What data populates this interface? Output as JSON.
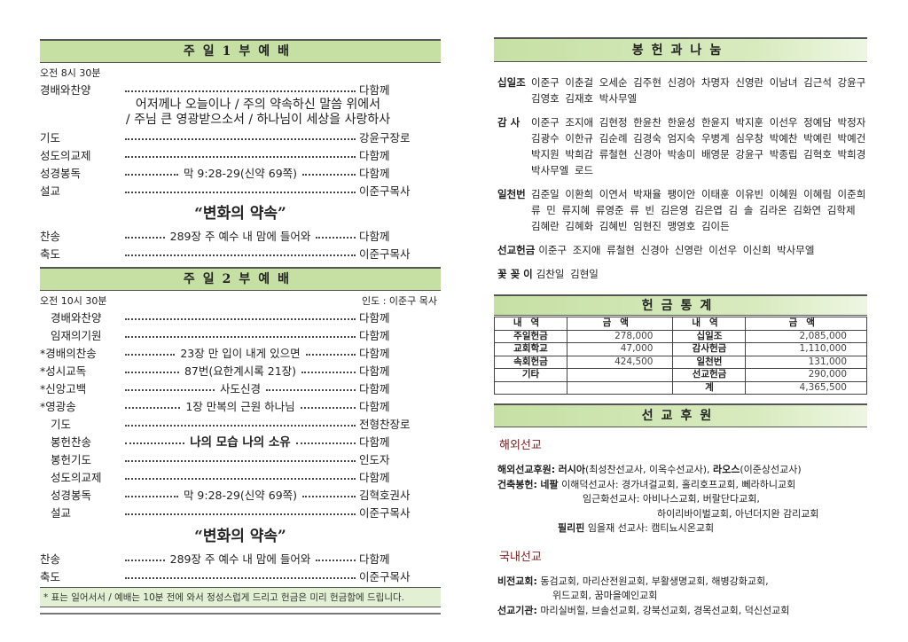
{
  "service1": {
    "header": "주일1부예배",
    "time": "오전 8시 30분",
    "rows_a": [
      {
        "label": "경배와찬양",
        "mid": "",
        "right": "다함께"
      }
    ],
    "hymns": [
      "어저께나 오늘이나 / 주의 약속하신 말씀 위에서",
      "/ 주님 큰 영광받으소서 / 하나님이 세상을 사랑하사"
    ],
    "rows_b": [
      {
        "label": "기도",
        "mid": "",
        "right": "강윤구장로"
      },
      {
        "label": "성도의교제",
        "mid": "",
        "right": "다함께"
      },
      {
        "label": "성경봉독",
        "mid": "막 9:28-29(신약 69쪽)",
        "right": "다함께"
      },
      {
        "label": "설교",
        "mid": "",
        "right": "이준구목사"
      }
    ],
    "sermon_title": "“변화의 약속”",
    "rows_c": [
      {
        "label": "찬송",
        "mid": "289장 주 예수 내 맘에 들어와",
        "right": "다함께"
      },
      {
        "label": "축도",
        "mid": "",
        "right": "이준구목사"
      }
    ]
  },
  "service2": {
    "header": "주일2부예배",
    "time": "오전 10시 30분",
    "leader": "인도 : 이준구 목사",
    "rows": [
      {
        "label": "경배와찬양",
        "mid": "",
        "right": "다함께"
      },
      {
        "label": "임재의기원",
        "mid": "",
        "right": "다함께"
      },
      {
        "label": "*경배의찬송",
        "mid": "23장 만 입이 내게 있으면",
        "right": "다함께"
      },
      {
        "label": "*성시교독",
        "mid": "87번(요한계시록 21장)",
        "right": "다함께"
      },
      {
        "label": "*신앙고백",
        "mid": "사도신경",
        "right": "다함께"
      },
      {
        "label": "*영광송",
        "mid": "1장 만복의 근원 하나님",
        "right": "다함께"
      },
      {
        "label": "기도",
        "mid": "",
        "right": "전형찬장로"
      },
      {
        "label": "봉헌찬송",
        "mid": "나의 모습 나의 소유",
        "right": "다함께",
        "bold": true
      },
      {
        "label": "봉헌기도",
        "mid": "",
        "right": "인도자"
      },
      {
        "label": "성도의교제",
        "mid": "",
        "right": "다함께"
      },
      {
        "label": "성경봉독",
        "mid": "막 9:28-29(신약 69쪽)",
        "right": "김혁호권사"
      },
      {
        "label": "설교",
        "mid": "",
        "right": "이준구목사"
      }
    ],
    "sermon_title": "“변화의 약속”",
    "rows_c": [
      {
        "label": "찬송",
        "mid": "289장 주 예수 내 맘에 들어와",
        "right": "다함께"
      },
      {
        "label": "축도",
        "mid": "",
        "right": "이준구목사"
      }
    ],
    "note": "* 표는 일어서서 / 예배는 10분 전에 와서 정성스럽게 드리고 헌금은 미리 헌금함에 드립니다."
  },
  "offering": {
    "header": "봉헌과나눔",
    "groups": [
      {
        "label": "십일조",
        "names": "이준구 이춘걸 오세순 김주현 신경아 차명자 신영란 이남녀 김근석 강윤구 김영호 김재호 박사무엘"
      },
      {
        "label": "감 사",
        "names": "이준구 조지애 김현정 한윤찬 한윤성 한윤지 박지훈 이선우 정예담 박정자 김광수 이한규 김순례 김경숙 엄지숙 우병계 심우창 박예찬 박예린 박예건 박지원 박희감 류철현 신경아 박송미 배영문 강윤구 박종립 김혁호 박희경 박사무엘 로드"
      },
      {
        "label": "일천번",
        "names": "김준일 이환희 이연서 박재율 팽이안 이태훈 이유빈 이혜원 이혜림 이준희 류 민 류지혜 류영준 류 빈 김은영 김은엽 김 솔 김라온 김화연 김학제 김혜란 김혜화 김혜빈 임현진 맹영호 김이든"
      },
      {
        "label": "선교헌금",
        "names": "이준구 조지애 류철현 신경아 신영란 이선우 이신희 박사무엘"
      },
      {
        "label": "꽃 꽂 이",
        "names": "김찬일 김현일"
      }
    ]
  },
  "stats": {
    "header": "헌금통계",
    "columns": [
      "내역",
      "금액",
      "내역",
      "금액"
    ],
    "rows": [
      [
        "주일헌금",
        "278,000",
        "십일조",
        "2,085,000"
      ],
      [
        "교회학교",
        "47,000",
        "감사헌금",
        "1,110,000"
      ],
      [
        "속회헌금",
        "424,500",
        "일천번",
        "131,000"
      ],
      [
        "기타",
        "",
        "선교헌금",
        "290,000"
      ],
      [
        "",
        "",
        "계",
        "4,365,500"
      ]
    ]
  },
  "mission": {
    "header": "선교후원",
    "overseas_title": "해외선교",
    "overseas": [
      {
        "lab": "해외선교후원:",
        "b1": "러시아",
        "t1": "(최성찬선교사, 이옥수선교사), ",
        "b2": "라오스",
        "t2": "(이준상선교사)"
      },
      {
        "lab": "건축봉헌:",
        "b1": "네팔",
        "t1": " 이해덕선교사: 경가녀걸교회, 홀리호프교회, 뻬라하니교회",
        "b2": "",
        "t2": ""
      }
    ],
    "overseas_cont": [
      "임근화선교사: 아비나스교회, 버랄단다교회,",
      "하이리바이벌교회, 아넌더지완 감리교회"
    ],
    "philippines": {
      "b": "필리핀",
      "t": " 임을재 선교사: 캠티뇨시온교회"
    },
    "domestic_title": "국내선교",
    "domestic": [
      {
        "lab": "비전교회:",
        "t": " 동검교회, 마리산전원교회, 부활생명교회, 해병강화교회,"
      },
      {
        "lab": "",
        "t": "위드교회, 꿈마을예인교회"
      },
      {
        "lab": "선교기관:",
        "t": " 마리실버힐, 브솔선교회, 강북선교회, 경목선교회, 덕신선교회"
      }
    ]
  }
}
